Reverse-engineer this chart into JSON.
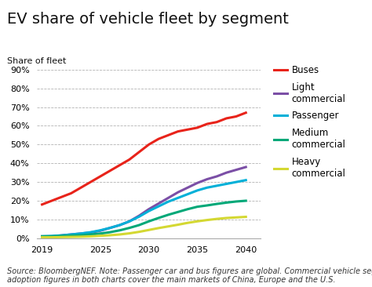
{
  "title": "EV share of vehicle fleet by segment",
  "ylabel": "Share of fleet",
  "source_text": "Source: BloombergNEF. Note: Passenger car and bus figures are global. Commercial vehicle segment\nadoption figures in both charts cover the main markets of China, Europe and the U.S.",
  "x": [
    2019,
    2020,
    2021,
    2022,
    2023,
    2024,
    2025,
    2026,
    2027,
    2028,
    2029,
    2030,
    2031,
    2032,
    2033,
    2034,
    2035,
    2036,
    2037,
    2038,
    2039,
    2040
  ],
  "series": [
    {
      "label": "Buses",
      "color": "#e8231a",
      "values": [
        0.18,
        0.2,
        0.22,
        0.24,
        0.27,
        0.3,
        0.33,
        0.36,
        0.39,
        0.42,
        0.46,
        0.5,
        0.53,
        0.55,
        0.57,
        0.58,
        0.59,
        0.61,
        0.62,
        0.64,
        0.65,
        0.67
      ]
    },
    {
      "label": "Light\ncommercial",
      "color": "#7b4fa6",
      "values": [
        0.01,
        0.01,
        0.015,
        0.02,
        0.025,
        0.03,
        0.04,
        0.055,
        0.07,
        0.09,
        0.12,
        0.155,
        0.185,
        0.215,
        0.245,
        0.27,
        0.295,
        0.315,
        0.33,
        0.35,
        0.365,
        0.38
      ]
    },
    {
      "label": "Passenger",
      "color": "#00b0d8",
      "values": [
        0.01,
        0.012,
        0.015,
        0.02,
        0.025,
        0.032,
        0.042,
        0.055,
        0.07,
        0.09,
        0.115,
        0.145,
        0.17,
        0.195,
        0.215,
        0.235,
        0.255,
        0.27,
        0.28,
        0.29,
        0.3,
        0.31
      ]
    },
    {
      "label": "Medium\ncommercial",
      "color": "#00a878",
      "values": [
        0.01,
        0.01,
        0.012,
        0.014,
        0.016,
        0.02,
        0.025,
        0.032,
        0.042,
        0.055,
        0.07,
        0.09,
        0.108,
        0.125,
        0.14,
        0.155,
        0.168,
        0.175,
        0.183,
        0.19,
        0.196,
        0.2
      ]
    },
    {
      "label": "Heavy\ncommercial",
      "color": "#d4d832",
      "values": [
        0.005,
        0.005,
        0.006,
        0.007,
        0.008,
        0.01,
        0.013,
        0.016,
        0.02,
        0.026,
        0.034,
        0.044,
        0.054,
        0.063,
        0.072,
        0.082,
        0.09,
        0.097,
        0.103,
        0.108,
        0.111,
        0.114
      ]
    }
  ],
  "xlim": [
    2018.5,
    2041.5
  ],
  "ylim": [
    0,
    0.95
  ],
  "xticks": [
    2019,
    2025,
    2030,
    2035,
    2040
  ],
  "yticks": [
    0,
    0.1,
    0.2,
    0.3,
    0.4,
    0.5,
    0.6,
    0.7,
    0.8,
    0.9
  ],
  "ytick_labels": [
    "0%",
    "10%",
    "20%",
    "30%",
    "40%",
    "50%",
    "60%",
    "70%",
    "80%",
    "90%"
  ],
  "background_color": "#ffffff",
  "title_fontsize": 14,
  "ylabel_fontsize": 8,
  "axis_fontsize": 8,
  "legend_fontsize": 8.5,
  "source_fontsize": 7,
  "line_width": 2.2
}
